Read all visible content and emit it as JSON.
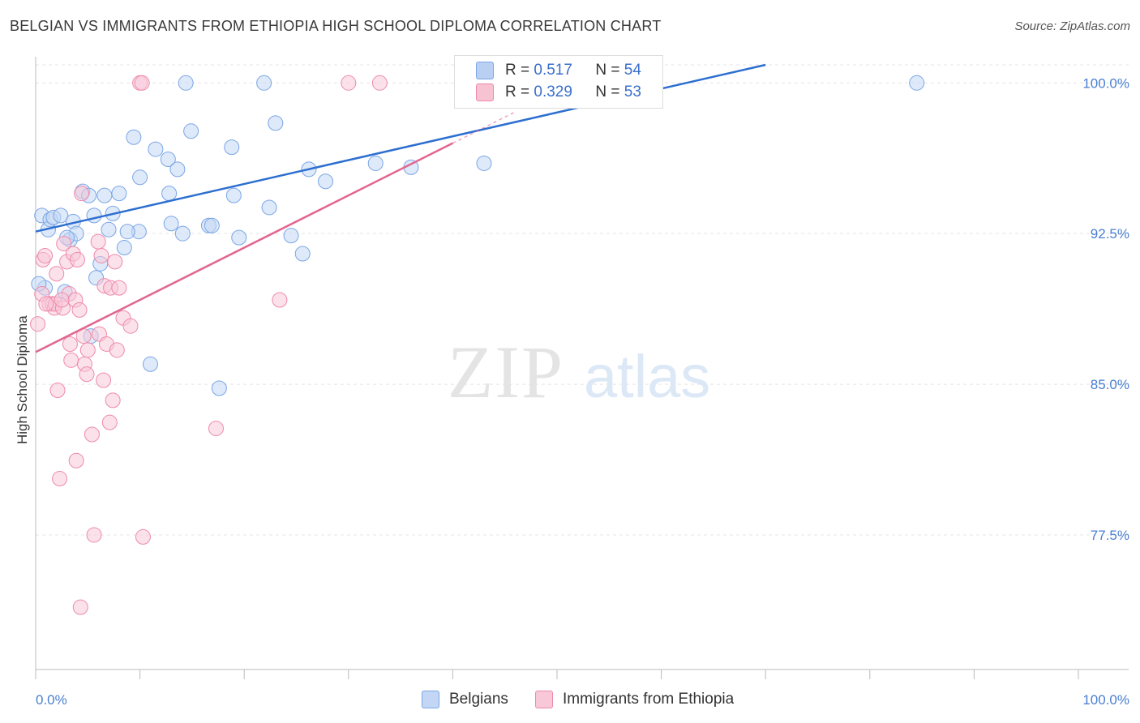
{
  "title": "BELGIAN VS IMMIGRANTS FROM ETHIOPIA HIGH SCHOOL DIPLOMA CORRELATION CHART",
  "source": "Source: ZipAtlas.com",
  "watermark": {
    "zip": "ZIP",
    "atlas": "atlas"
  },
  "colors": {
    "blue": "#7aa6e6",
    "blue_fill": "#c3d7f4",
    "blue_line": "#2c6fd0",
    "pink": "#ee8aaa",
    "pink_fill": "#f8c8d8",
    "pink_line": "#e2668f",
    "axis_label": "#4a7fd0"
  },
  "legend": {
    "rows": [
      {
        "r_label": "R =",
        "r_value": "0.517",
        "n_label": "N =",
        "n_value": "54",
        "color": "#b9d0f2"
      },
      {
        "r_label": "R =",
        "r_value": "0.329",
        "n_label": "N =",
        "n_value": "53",
        "color": "#f7c3d3"
      }
    ]
  },
  "bottom_legend": [
    {
      "label": "Belgians",
      "color": "#c3d7f4"
    },
    {
      "label": "Immigrants from Ethiopia",
      "color": "#f8c8d8"
    }
  ],
  "chart_data": {
    "type": "scatter",
    "ylabel": "High School Diploma",
    "xlabel": "",
    "xlim": [
      0,
      100
    ],
    "ylim": [
      70.8,
      100.9
    ],
    "x_tick_labels": [
      "0.0%",
      "100.0%"
    ],
    "y_ticks": [
      100.0,
      92.5,
      85.0,
      77.5
    ],
    "y_tick_labels": [
      "100.0%",
      "92.5%",
      "85.0%",
      "77.5%"
    ],
    "grid": true,
    "series": [
      {
        "name": "Belgians",
        "r": 0.517,
        "n": 54,
        "trend": {
          "x": [
            0,
            70
          ],
          "y": [
            92.6,
            100.9
          ]
        },
        "points": [
          [
            0.6,
            93.4
          ],
          [
            1.2,
            92.7
          ],
          [
            1.4,
            93.2
          ],
          [
            1.7,
            93.3
          ],
          [
            2.4,
            93.4
          ],
          [
            3.3,
            92.2
          ],
          [
            3.6,
            93.1
          ],
          [
            3.9,
            92.5
          ],
          [
            4.5,
            94.6
          ],
          [
            5.1,
            94.4
          ],
          [
            5.6,
            93.4
          ],
          [
            6.6,
            94.4
          ],
          [
            7.0,
            92.7
          ],
          [
            7.4,
            93.5
          ],
          [
            8.0,
            94.5
          ],
          [
            8.5,
            91.8
          ],
          [
            9.4,
            97.3
          ],
          [
            9.9,
            92.6
          ],
          [
            10.0,
            95.3
          ],
          [
            11.5,
            96.7
          ],
          [
            12.7,
            96.2
          ],
          [
            12.8,
            94.5
          ],
          [
            13.0,
            93.0
          ],
          [
            13.6,
            95.7
          ],
          [
            14.1,
            92.5
          ],
          [
            14.4,
            100.0
          ],
          [
            14.9,
            97.6
          ],
          [
            16.6,
            92.9
          ],
          [
            16.9,
            92.9
          ],
          [
            18.8,
            96.8
          ],
          [
            19.0,
            94.4
          ],
          [
            19.5,
            92.3
          ],
          [
            21.9,
            100.0
          ],
          [
            22.4,
            93.8
          ],
          [
            23.0,
            98.0
          ],
          [
            24.5,
            92.4
          ],
          [
            25.6,
            91.5
          ],
          [
            26.2,
            95.7
          ],
          [
            27.8,
            95.1
          ],
          [
            32.6,
            96.0
          ],
          [
            36.0,
            95.8
          ],
          [
            43.0,
            96.0
          ],
          [
            48.5,
            100.0
          ],
          [
            84.5,
            100.0
          ],
          [
            0.9,
            89.8
          ],
          [
            2.8,
            89.6
          ],
          [
            5.3,
            87.4
          ],
          [
            5.8,
            90.3
          ],
          [
            6.2,
            91.0
          ],
          [
            11.0,
            86.0
          ],
          [
            17.6,
            84.8
          ],
          [
            0.3,
            90.0
          ],
          [
            3.0,
            92.3
          ],
          [
            8.8,
            92.6
          ]
        ]
      },
      {
        "name": "Immigrants from Ethiopia",
        "r": 0.329,
        "n": 53,
        "trend": {
          "x": [
            0,
            40
          ],
          "y": [
            86.6,
            97.0
          ]
        },
        "points": [
          [
            0.2,
            88.0
          ],
          [
            0.6,
            89.5
          ],
          [
            0.7,
            91.2
          ],
          [
            0.9,
            91.4
          ],
          [
            1.3,
            89.0
          ],
          [
            1.6,
            89.0
          ],
          [
            1.8,
            88.8
          ],
          [
            1.9,
            89.0
          ],
          [
            2.0,
            90.5
          ],
          [
            2.1,
            84.7
          ],
          [
            2.3,
            80.3
          ],
          [
            2.6,
            88.8
          ],
          [
            2.7,
            92.0
          ],
          [
            3.0,
            91.1
          ],
          [
            3.2,
            89.5
          ],
          [
            3.3,
            87.0
          ],
          [
            3.4,
            86.2
          ],
          [
            3.6,
            91.5
          ],
          [
            3.8,
            89.2
          ],
          [
            3.9,
            81.2
          ],
          [
            4.0,
            91.2
          ],
          [
            4.2,
            88.7
          ],
          [
            4.3,
            73.9
          ],
          [
            4.4,
            94.5
          ],
          [
            4.6,
            87.4
          ],
          [
            4.7,
            86.0
          ],
          [
            4.9,
            85.5
          ],
          [
            5.0,
            86.7
          ],
          [
            5.4,
            82.5
          ],
          [
            5.6,
            77.5
          ],
          [
            6.1,
            87.5
          ],
          [
            6.3,
            91.4
          ],
          [
            6.5,
            85.2
          ],
          [
            6.6,
            89.9
          ],
          [
            6.8,
            87.0
          ],
          [
            7.1,
            83.1
          ],
          [
            7.2,
            89.8
          ],
          [
            7.4,
            84.2
          ],
          [
            7.6,
            91.1
          ],
          [
            7.8,
            86.7
          ],
          [
            8.0,
            89.8
          ],
          [
            8.4,
            88.3
          ],
          [
            9.1,
            87.9
          ],
          [
            10.3,
            77.4
          ],
          [
            10.0,
            100.0
          ],
          [
            10.2,
            100.0
          ],
          [
            17.3,
            82.8
          ],
          [
            23.4,
            89.2
          ],
          [
            30.0,
            100.0
          ],
          [
            33.0,
            100.0
          ],
          [
            1.0,
            89.0
          ],
          [
            2.5,
            89.2
          ],
          [
            6.0,
            92.1
          ]
        ]
      }
    ]
  }
}
